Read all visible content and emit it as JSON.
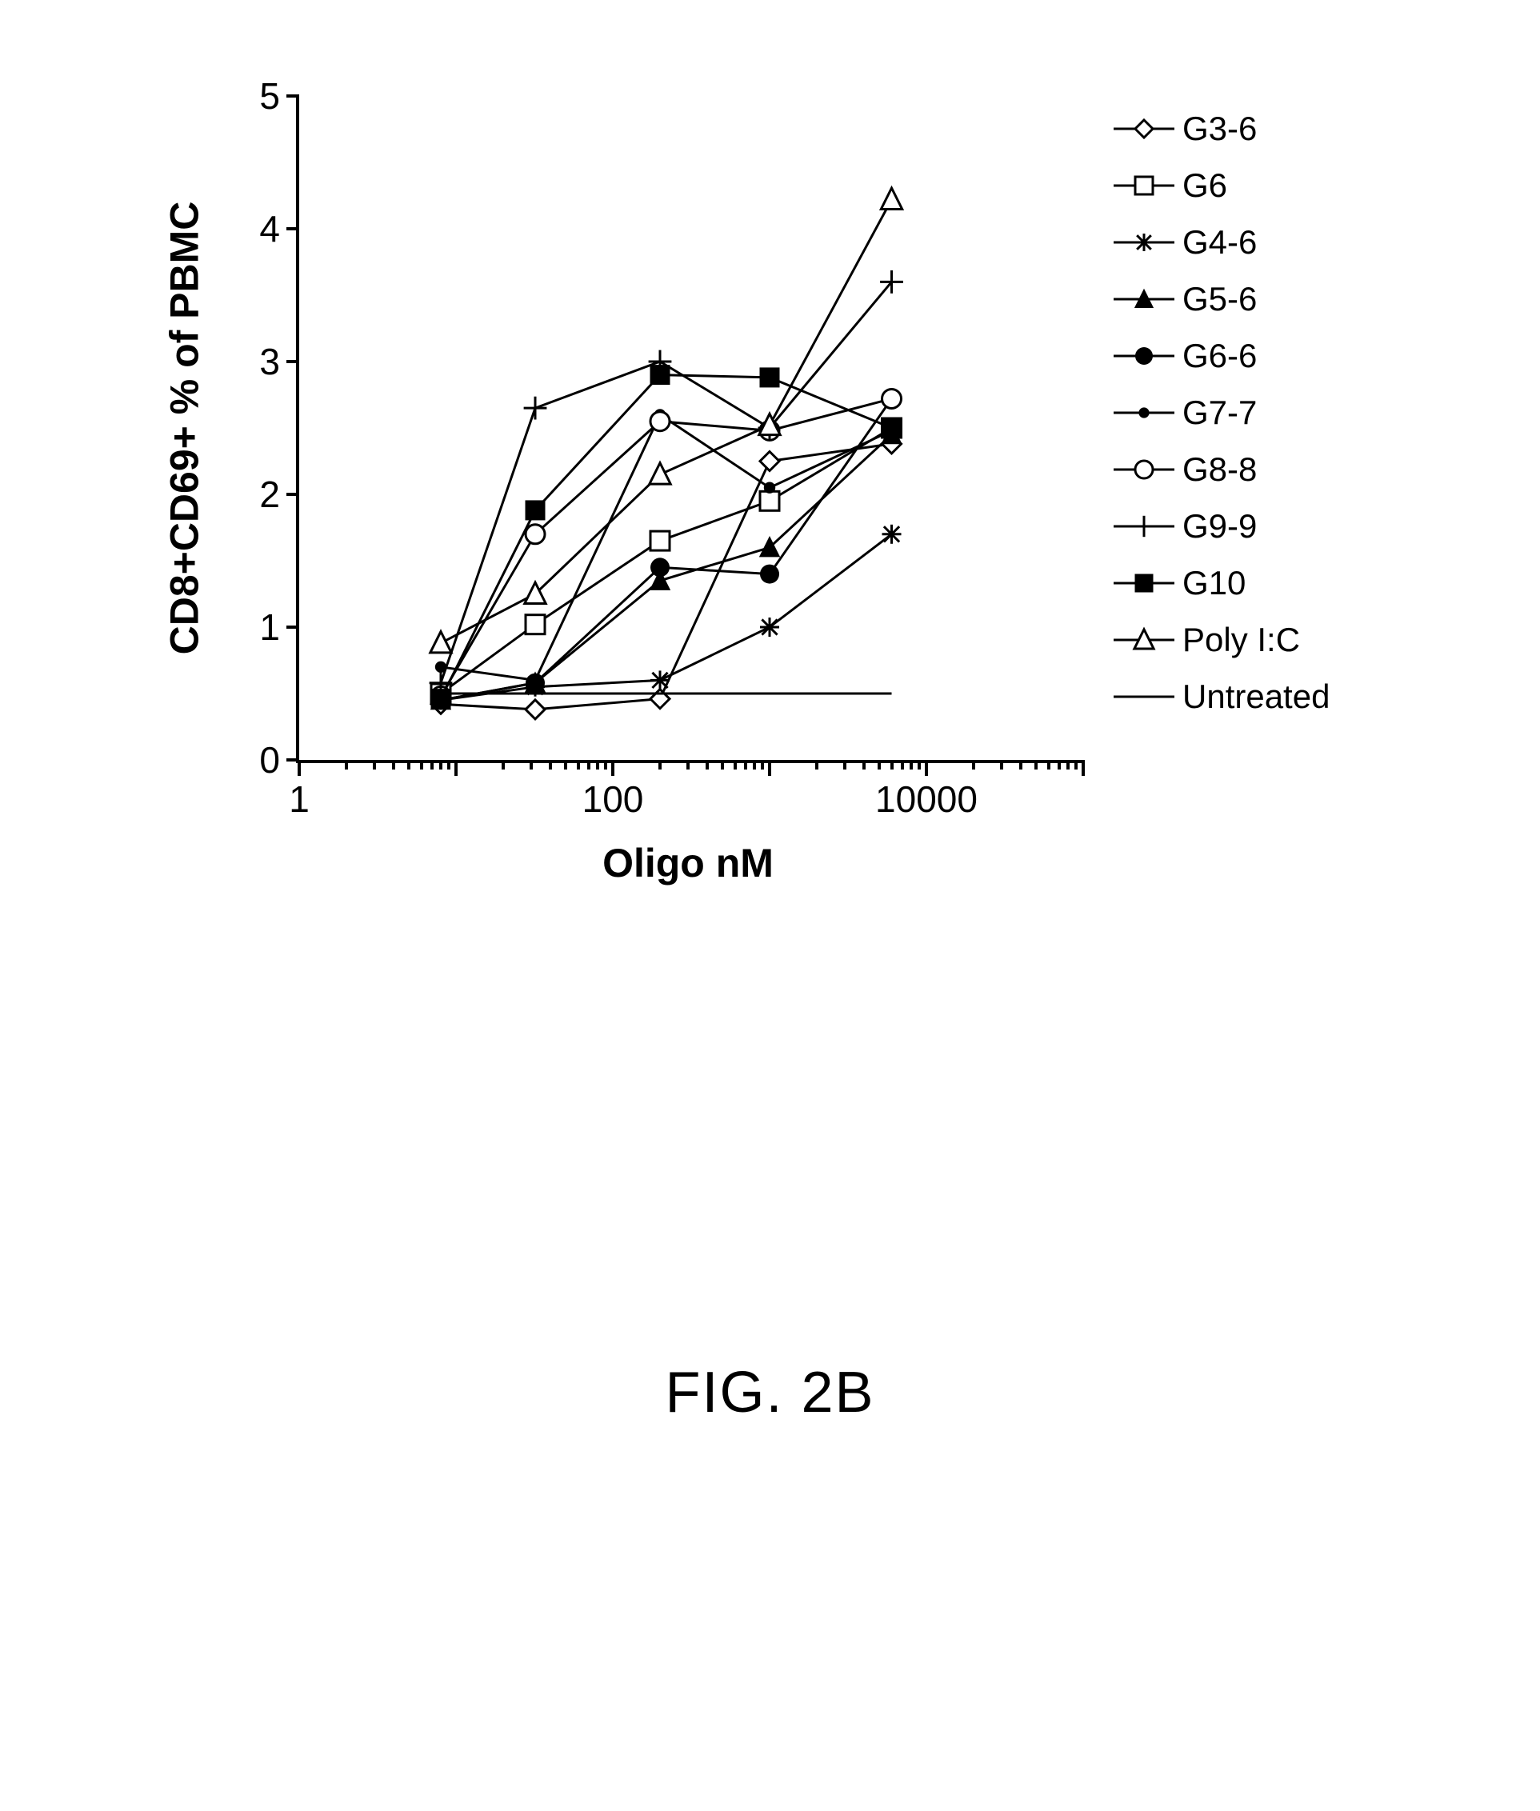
{
  "figure_caption": "FIG. 2B",
  "chart": {
    "type": "line",
    "background_color": "#ffffff",
    "axis_line_color": "#000000",
    "axis_line_width": 4,
    "line_width": 3,
    "marker_size": 12,
    "x_axis": {
      "label": "Oligo nM",
      "label_fontsize": 50,
      "label_fontweight": "bold",
      "scale": "log",
      "xlim": [
        1,
        100000
      ],
      "tick_labels": {
        "1": "1",
        "100": "100",
        "10000": "10000"
      }
    },
    "y_axis": {
      "label": "CD8+CD69+ % of PBMC",
      "label_fontsize": 50,
      "label_fontweight": "bold",
      "scale": "linear",
      "ylim": [
        0,
        5
      ],
      "tick_step": 1,
      "tick_labels": {
        "0": "0",
        "1": "1",
        "2": "2",
        "3": "3",
        "4": "4",
        "5": "5"
      }
    },
    "x_values": [
      8,
      32,
      200,
      1000,
      6000
    ],
    "legend_position": "right",
    "legend_fontsize": 42,
    "series": [
      {
        "name": "G3-6",
        "marker": "diamond-open",
        "color": "#000000",
        "y": [
          0.42,
          0.38,
          0.46,
          2.25,
          2.38
        ]
      },
      {
        "name": "G6",
        "marker": "square-open",
        "color": "#000000",
        "y": [
          0.5,
          1.02,
          1.65,
          1.95,
          2.5
        ]
      },
      {
        "name": "G4-6",
        "marker": "asterisk",
        "color": "#000000",
        "y": [
          0.45,
          0.55,
          0.6,
          1.0,
          1.7
        ]
      },
      {
        "name": "G5-6",
        "marker": "triangle-filled",
        "color": "#000000",
        "y": [
          0.45,
          0.58,
          1.35,
          1.6,
          2.45
        ]
      },
      {
        "name": "G6-6",
        "marker": "circle-filled",
        "color": "#000000",
        "y": [
          0.45,
          0.58,
          1.45,
          1.4,
          2.72
        ]
      },
      {
        "name": "G7-7",
        "marker": "dot-small",
        "color": "#000000",
        "y": [
          0.7,
          0.6,
          2.6,
          2.05,
          2.48
        ]
      },
      {
        "name": "G8-8",
        "marker": "circle-open",
        "color": "#000000",
        "y": [
          0.48,
          1.7,
          2.55,
          2.48,
          2.72
        ]
      },
      {
        "name": "G9-9",
        "marker": "plus",
        "color": "#000000",
        "y": [
          0.58,
          2.65,
          3.0,
          2.5,
          3.6
        ]
      },
      {
        "name": "G10",
        "marker": "square-filled",
        "color": "#000000",
        "y": [
          0.46,
          1.88,
          2.9,
          2.88,
          2.5
        ]
      },
      {
        "name": "Poly I:C",
        "marker": "triangle-open",
        "color": "#000000",
        "y": [
          0.88,
          1.25,
          2.15,
          2.52,
          4.22
        ]
      },
      {
        "name": "Untreated",
        "marker": "none-dash",
        "color": "#000000",
        "y": [
          0.5,
          0.5,
          0.5,
          0.5,
          0.5
        ]
      }
    ]
  }
}
